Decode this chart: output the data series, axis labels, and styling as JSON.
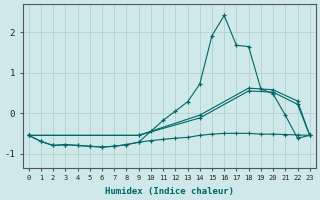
{
  "xlabel": "Humidex (Indice chaleur)",
  "background_color": "#cfe8e8",
  "grid_color": "#aacccc",
  "line_color": "#006666",
  "xlim": [
    -0.5,
    23.5
  ],
  "ylim": [
    -1.35,
    2.7
  ],
  "yticks": [
    -1,
    0,
    1,
    2
  ],
  "xticks": [
    0,
    1,
    2,
    3,
    4,
    5,
    6,
    7,
    8,
    9,
    10,
    11,
    12,
    13,
    14,
    15,
    16,
    17,
    18,
    19,
    20,
    21,
    22,
    23
  ],
  "line_main_x": [
    0,
    1,
    2,
    3,
    4,
    5,
    6,
    7,
    8,
    9,
    10,
    11,
    12,
    13,
    14,
    15,
    16,
    17,
    18,
    19,
    20,
    21,
    22,
    23
  ],
  "line_main_y": [
    -0.55,
    -0.7,
    -0.8,
    -0.78,
    -0.8,
    -0.82,
    -0.84,
    -0.82,
    -0.78,
    -0.72,
    -0.45,
    -0.18,
    0.05,
    0.28,
    0.72,
    1.92,
    2.42,
    1.68,
    1.65,
    0.6,
    0.48,
    -0.05,
    -0.62,
    -0.55
  ],
  "line_flat_x": [
    0,
    1,
    2,
    3,
    4,
    5,
    6,
    7,
    8,
    9,
    10,
    11,
    12,
    13,
    14,
    15,
    16,
    17,
    18,
    19,
    20,
    21,
    22,
    23
  ],
  "line_flat_y": [
    -0.55,
    -0.7,
    -0.8,
    -0.78,
    -0.8,
    -0.82,
    -0.84,
    -0.82,
    -0.78,
    -0.72,
    -0.68,
    -0.65,
    -0.62,
    -0.6,
    -0.55,
    -0.52,
    -0.5,
    -0.5,
    -0.5,
    -0.52,
    -0.52,
    -0.53,
    -0.54,
    -0.55
  ],
  "line_diag1_x": [
    0,
    9,
    14,
    18,
    20,
    22,
    23
  ],
  "line_diag1_y": [
    -0.55,
    -0.55,
    -0.05,
    0.62,
    0.58,
    0.3,
    -0.55
  ],
  "line_diag2_x": [
    0,
    9,
    14,
    18,
    20,
    22,
    23
  ],
  "line_diag2_y": [
    -0.55,
    -0.55,
    -0.12,
    0.55,
    0.52,
    0.22,
    -0.55
  ]
}
